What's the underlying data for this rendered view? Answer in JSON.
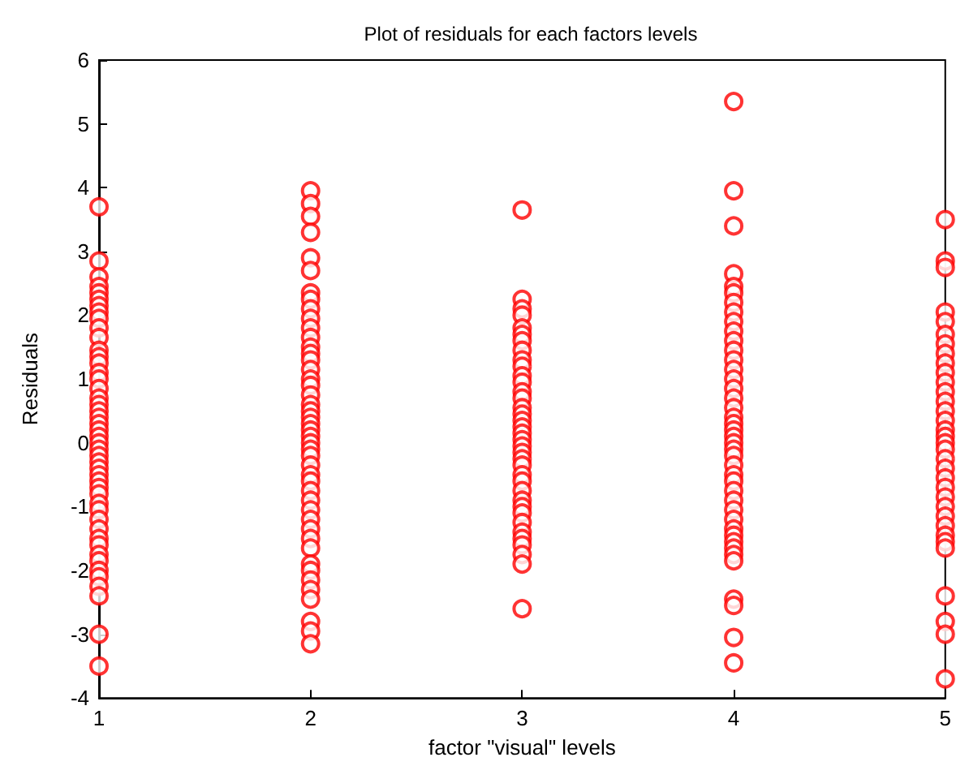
{
  "chart_data": {
    "type": "scatter",
    "title": "Plot of residuals for each factors levels",
    "xlabel": "factor \"visual\" levels",
    "ylabel": "Residuals",
    "xlim": [
      1,
      5
    ],
    "xticks": [
      1,
      2,
      3,
      4,
      5
    ],
    "ylim": [
      -4,
      6
    ],
    "yticks": [
      -4,
      -3,
      -2,
      -1,
      0,
      1,
      2,
      3,
      4,
      5,
      6
    ],
    "grid": false,
    "marker": "circle",
    "series": [
      {
        "color": "#ff0000",
        "x": [
          1,
          1,
          1,
          1,
          1,
          1,
          1,
          1,
          1,
          1,
          1,
          1,
          1,
          1,
          1,
          1,
          1,
          1,
          1,
          1,
          1,
          1,
          1,
          1,
          1,
          1,
          1,
          1,
          1,
          1,
          1,
          1,
          1,
          1,
          1,
          1,
          1,
          1,
          1,
          1,
          1,
          1,
          1,
          1,
          1,
          1,
          1
        ],
        "values": [
          3.7,
          2.85,
          2.6,
          2.45,
          2.35,
          2.25,
          2.15,
          2.05,
          1.95,
          1.8,
          1.65,
          1.45,
          1.35,
          1.25,
          1.1,
          1.0,
          0.85,
          0.7,
          0.6,
          0.5,
          0.4,
          0.3,
          0.2,
          0.1,
          0.0,
          -0.1,
          -0.2,
          -0.3,
          -0.4,
          -0.5,
          -0.6,
          -0.7,
          -0.8,
          -0.95,
          -1.05,
          -1.2,
          -1.35,
          -1.5,
          -1.6,
          -1.75,
          -1.85,
          -2.0,
          -2.1,
          -2.25,
          -2.4,
          -3.0,
          -3.5
        ]
      },
      {
        "color": "#ff0000",
        "x": [
          2,
          2,
          2,
          2,
          2,
          2,
          2,
          2,
          2,
          2,
          2,
          2,
          2,
          2,
          2,
          2,
          2,
          2,
          2,
          2,
          2,
          2,
          2,
          2,
          2,
          2,
          2,
          2,
          2,
          2,
          2,
          2,
          2,
          2,
          2,
          2,
          2,
          2,
          2,
          2,
          2,
          2,
          2,
          2,
          2,
          2
        ],
        "values": [
          3.95,
          3.75,
          3.55,
          3.3,
          2.9,
          2.7,
          2.35,
          2.25,
          2.1,
          1.95,
          1.8,
          1.65,
          1.5,
          1.4,
          1.3,
          1.15,
          1.0,
          0.9,
          0.75,
          0.6,
          0.5,
          0.4,
          0.3,
          0.2,
          0.1,
          0.0,
          -0.1,
          -0.2,
          -0.35,
          -0.5,
          -0.6,
          -0.75,
          -0.9,
          -1.05,
          -1.2,
          -1.35,
          -1.5,
          -1.65,
          -1.9,
          -2.0,
          -2.15,
          -2.3,
          -2.45,
          -2.8,
          -2.95,
          -3.15
        ]
      },
      {
        "color": "#ff0000",
        "x": [
          3,
          3,
          3,
          3,
          3,
          3,
          3,
          3,
          3,
          3,
          3,
          3,
          3,
          3,
          3,
          3,
          3,
          3,
          3,
          3,
          3,
          3,
          3,
          3,
          3,
          3,
          3,
          3,
          3,
          3,
          3,
          3,
          3,
          3,
          3,
          3,
          3
        ],
        "values": [
          3.65,
          2.25,
          2.1,
          2.0,
          1.8,
          1.7,
          1.6,
          1.45,
          1.3,
          1.2,
          1.05,
          0.95,
          0.8,
          0.7,
          0.55,
          0.45,
          0.35,
          0.25,
          0.15,
          0.05,
          -0.05,
          -0.15,
          -0.25,
          -0.35,
          -0.5,
          -0.6,
          -0.75,
          -0.9,
          -1.0,
          -1.1,
          -1.25,
          -1.4,
          -1.5,
          -1.6,
          -1.75,
          -1.9,
          -2.6
        ]
      },
      {
        "color": "#ff0000",
        "x": [
          4,
          4,
          4,
          4,
          4,
          4,
          4,
          4,
          4,
          4,
          4,
          4,
          4,
          4,
          4,
          4,
          4,
          4,
          4,
          4,
          4,
          4,
          4,
          4,
          4,
          4,
          4,
          4,
          4,
          4,
          4,
          4,
          4,
          4,
          4,
          4,
          4,
          4,
          4,
          4,
          4,
          4
        ],
        "values": [
          5.35,
          3.95,
          3.4,
          2.65,
          2.45,
          2.35,
          2.2,
          2.05,
          1.9,
          1.75,
          1.6,
          1.45,
          1.3,
          1.15,
          1.0,
          0.85,
          0.7,
          0.55,
          0.4,
          0.3,
          0.2,
          0.1,
          0.0,
          -0.1,
          -0.2,
          -0.35,
          -0.5,
          -0.6,
          -0.75,
          -0.9,
          -1.05,
          -1.2,
          -1.35,
          -1.45,
          -1.55,
          -1.65,
          -1.75,
          -1.85,
          -2.45,
          -2.55,
          -3.05,
          -3.45
        ]
      },
      {
        "color": "#ff0000",
        "x": [
          5,
          5,
          5,
          5,
          5,
          5,
          5,
          5,
          5,
          5,
          5,
          5,
          5,
          5,
          5,
          5,
          5,
          5,
          5,
          5,
          5,
          5,
          5,
          5,
          5,
          5,
          5,
          5,
          5,
          5,
          5,
          5,
          5,
          5
        ],
        "values": [
          3.5,
          2.85,
          2.75,
          2.05,
          1.9,
          1.7,
          1.55,
          1.4,
          1.25,
          1.1,
          0.95,
          0.8,
          0.65,
          0.5,
          0.35,
          0.2,
          0.1,
          0.0,
          -0.1,
          -0.25,
          -0.4,
          -0.55,
          -0.7,
          -0.85,
          -1.0,
          -1.15,
          -1.3,
          -1.45,
          -1.55,
          -1.65,
          -2.4,
          -2.8,
          -3.0,
          -3.7
        ]
      }
    ]
  }
}
